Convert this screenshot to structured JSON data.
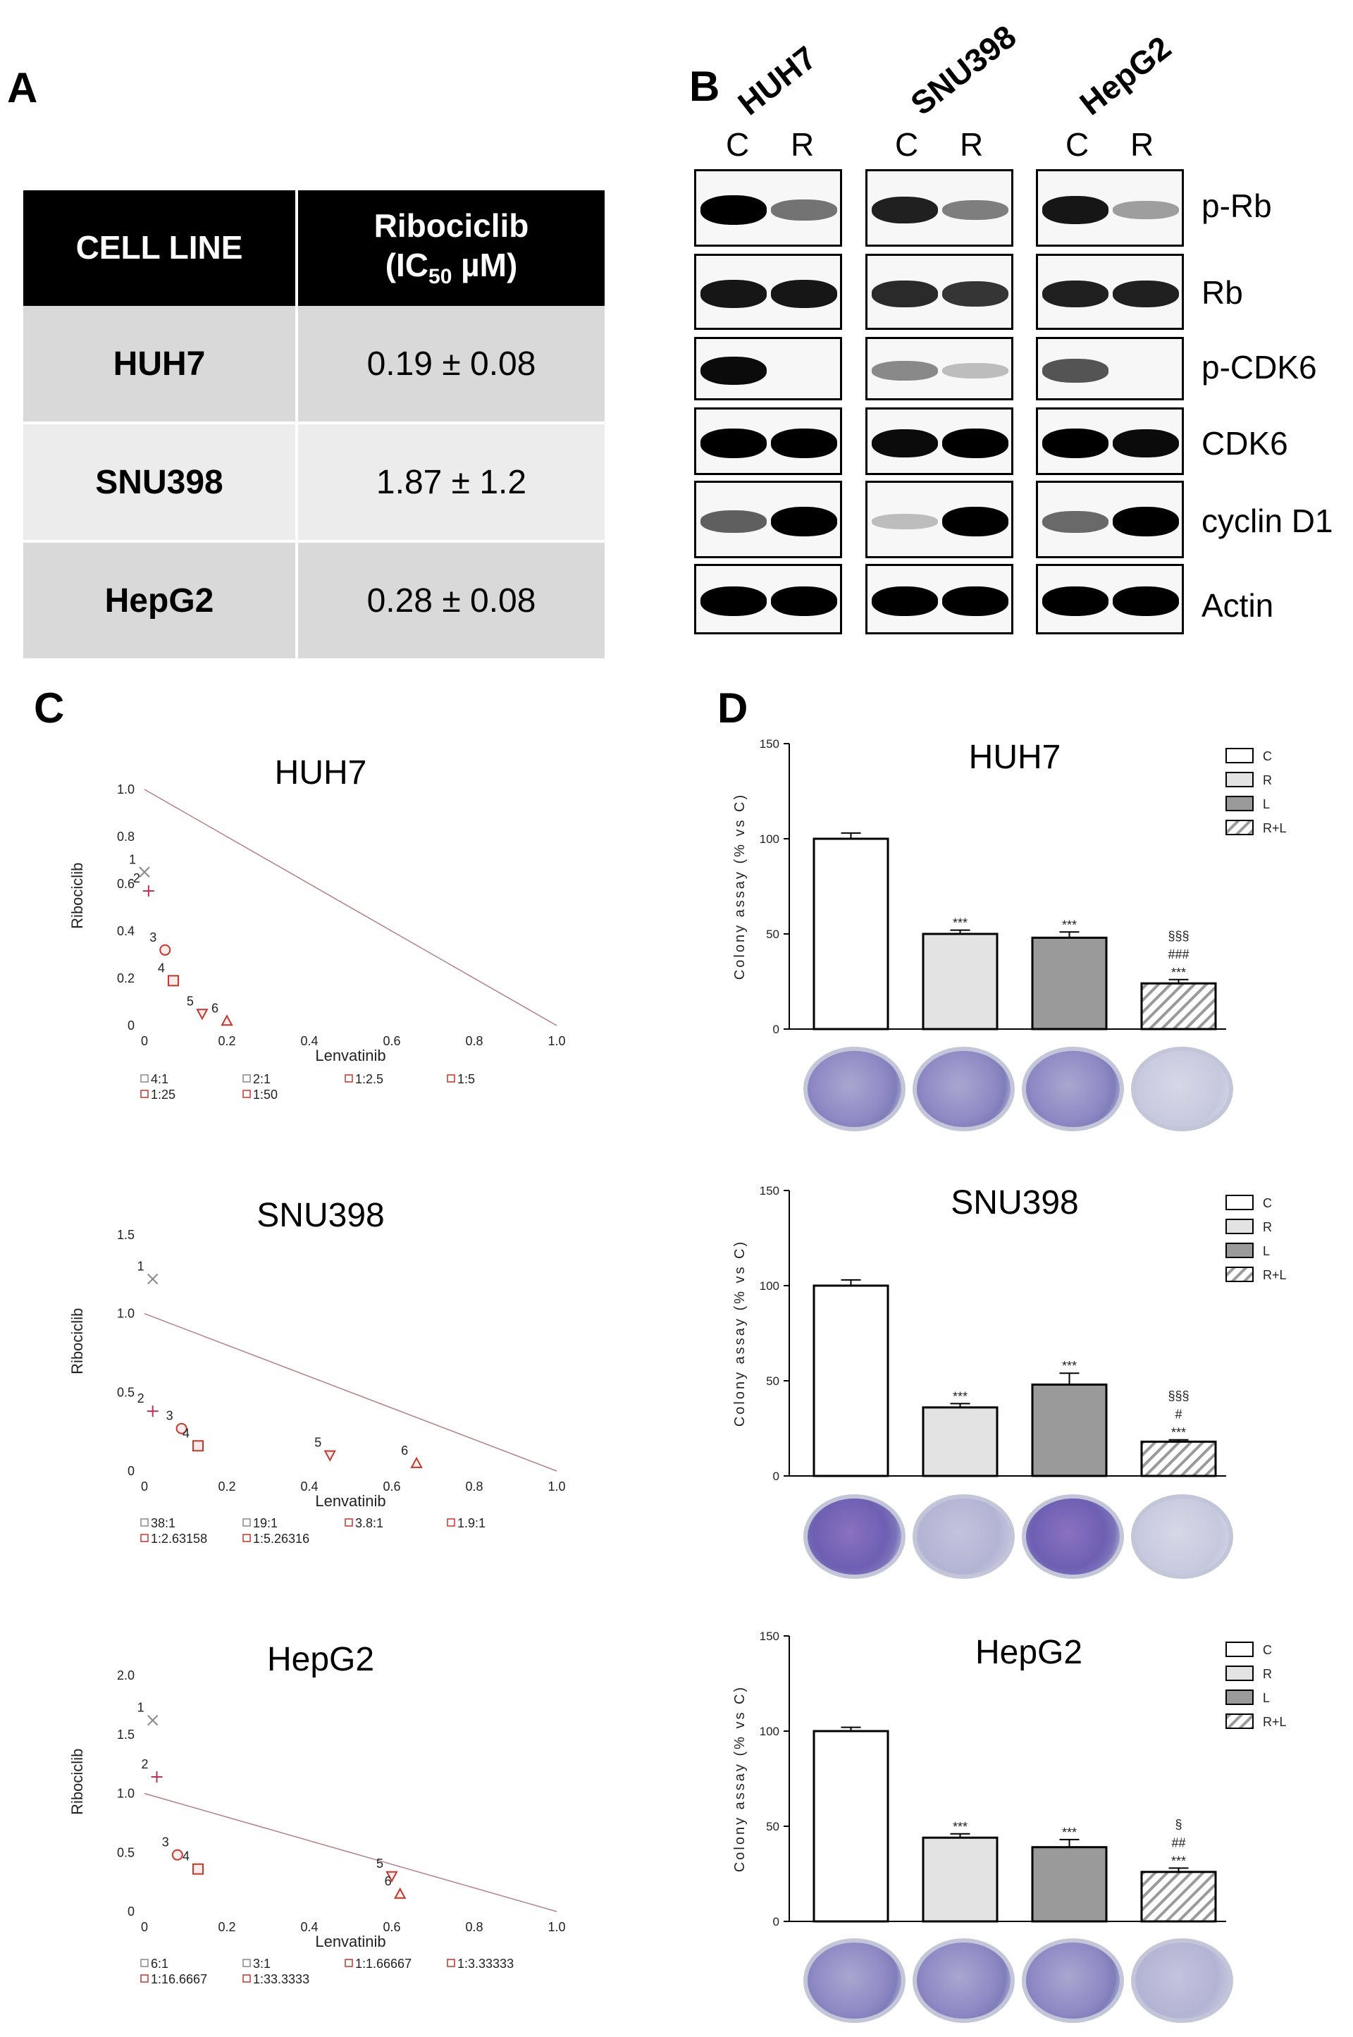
{
  "panel_labels": {
    "a": "A",
    "b": "B",
    "c": "C",
    "d": "D"
  },
  "table": {
    "header_cell_line": "CELL LINE",
    "header_drug": "Ribociclib",
    "header_ic_prefix": "(IC",
    "header_ic_sub": "50",
    "header_ic_suffix": " µM)",
    "rows": [
      {
        "name": "HUH7",
        "value": "0.19 ± 0.08"
      },
      {
        "name": "SNU398",
        "value": "1.87 ± 1.2"
      },
      {
        "name": "HepG2",
        "value": "0.28 ± 0.08"
      }
    ]
  },
  "blots": {
    "cell_lines": [
      "HUH7",
      "SNU398",
      "HepG2"
    ],
    "lanes": [
      "C",
      "R"
    ],
    "proteins": [
      "p-Rb",
      "Rb",
      "p-CDK6",
      "CDK6",
      "cyclin D1",
      "Actin"
    ]
  },
  "chart_data": [
    {
      "type": "scatter",
      "title": "HUH7",
      "xlabel": "Lenvatinib",
      "ylabel": "Ribociclib",
      "xlim": [
        0,
        1.0
      ],
      "ylim": [
        0,
        1.0
      ],
      "xticks": [
        "0",
        "0.2",
        "0.4",
        "0.6",
        "0.8",
        "1.0"
      ],
      "yticks": [
        "0",
        "0.2",
        "0.4",
        "0.6",
        "0.8",
        "1.0"
      ],
      "additivity_line": [
        [
          0,
          1.0
        ],
        [
          1.0,
          0
        ]
      ],
      "points": [
        {
          "label": "1",
          "x": 0.0,
          "y": 0.65
        },
        {
          "label": "2",
          "x": 0.01,
          "y": 0.57
        },
        {
          "label": "3",
          "x": 0.05,
          "y": 0.32
        },
        {
          "label": "4",
          "x": 0.07,
          "y": 0.19
        },
        {
          "label": "5",
          "x": 0.14,
          "y": 0.05
        },
        {
          "label": "6",
          "x": 0.2,
          "y": 0.02
        }
      ],
      "legend": [
        "4:1",
        "2:1",
        "1:2.5",
        "1:5",
        "1:25",
        "1:50"
      ]
    },
    {
      "type": "scatter",
      "title": "SNU398",
      "xlabel": "Lenvatinib",
      "ylabel": "Ribociclib",
      "xlim": [
        0,
        1.0
      ],
      "ylim": [
        0,
        1.5
      ],
      "xticks": [
        "0",
        "0.2",
        "0.4",
        "0.6",
        "0.8",
        "1.0"
      ],
      "yticks": [
        "0",
        "0.5",
        "1.0",
        "1.5"
      ],
      "additivity_line": [
        [
          0,
          1.0
        ],
        [
          1.0,
          0
        ]
      ],
      "points": [
        {
          "label": "1",
          "x": 0.02,
          "y": 1.22
        },
        {
          "label": "2",
          "x": 0.02,
          "y": 0.38
        },
        {
          "label": "3",
          "x": 0.09,
          "y": 0.27
        },
        {
          "label": "4",
          "x": 0.13,
          "y": 0.16
        },
        {
          "label": "5",
          "x": 0.45,
          "y": 0.1
        },
        {
          "label": "6",
          "x": 0.66,
          "y": 0.05
        }
      ],
      "legend": [
        "38:1",
        "19:1",
        "3.8:1",
        "1.9:1",
        "1:2.63158",
        "1:5.26316"
      ]
    },
    {
      "type": "scatter",
      "title": "HepG2",
      "xlabel": "Lenvatinib",
      "ylabel": "Ribociclib",
      "xlim": [
        0,
        1.0
      ],
      "ylim": [
        0,
        2.0
      ],
      "xticks": [
        "0",
        "0.2",
        "0.4",
        "0.6",
        "0.8",
        "1.0"
      ],
      "yticks": [
        "0",
        "0.5",
        "1.0",
        "1.5",
        "2.0"
      ],
      "additivity_line": [
        [
          0,
          1.0
        ],
        [
          1.0,
          0
        ]
      ],
      "points": [
        {
          "label": "1",
          "x": 0.02,
          "y": 1.62
        },
        {
          "label": "2",
          "x": 0.03,
          "y": 1.14
        },
        {
          "label": "3",
          "x": 0.08,
          "y": 0.48
        },
        {
          "label": "4",
          "x": 0.13,
          "y": 0.36
        },
        {
          "label": "5",
          "x": 0.6,
          "y": 0.3
        },
        {
          "label": "6",
          "x": 0.62,
          "y": 0.15
        }
      ],
      "legend": [
        "6:1",
        "3:1",
        "1:1.66667",
        "1:3.33333",
        "1:16.6667",
        "1:33.3333"
      ]
    },
    {
      "type": "bar",
      "title": "HUH7",
      "ylabel": "Colony assay (% vs C)",
      "ylim": [
        0,
        150
      ],
      "yticks": [
        "0",
        "50",
        "100",
        "150"
      ],
      "categories": [
        "C",
        "R",
        "L",
        "R+L"
      ],
      "values": [
        100,
        50,
        48,
        24
      ],
      "errors": [
        3,
        2,
        3,
        2
      ],
      "significance": [
        [],
        [
          "***"
        ],
        [
          "***"
        ],
        [
          "§§§",
          "###",
          "***"
        ]
      ],
      "legend": [
        "C",
        "R",
        "L",
        "R+L"
      ]
    },
    {
      "type": "bar",
      "title": "SNU398",
      "ylabel": "Colony assay (% vs C)",
      "ylim": [
        0,
        150
      ],
      "yticks": [
        "0",
        "50",
        "100",
        "150"
      ],
      "categories": [
        "C",
        "R",
        "L",
        "R+L"
      ],
      "values": [
        100,
        36,
        48,
        18
      ],
      "errors": [
        3,
        2,
        6,
        1
      ],
      "significance": [
        [],
        [
          "***"
        ],
        [
          "***"
        ],
        [
          "§§§",
          "#",
          "***"
        ]
      ],
      "legend": [
        "C",
        "R",
        "L",
        "R+L"
      ]
    },
    {
      "type": "bar",
      "title": "HepG2",
      "ylabel": "Colony assay (% vs C)",
      "ylim": [
        0,
        150
      ],
      "yticks": [
        "0",
        "50",
        "100",
        "150"
      ],
      "categories": [
        "C",
        "R",
        "L",
        "R+L"
      ],
      "values": [
        100,
        44,
        39,
        26
      ],
      "errors": [
        2,
        2,
        4,
        2
      ],
      "significance": [
        [],
        [
          "***"
        ],
        [
          "***"
        ],
        [
          "§",
          "##",
          "***"
        ]
      ],
      "legend": [
        "C",
        "R",
        "L",
        "R+L"
      ]
    }
  ]
}
